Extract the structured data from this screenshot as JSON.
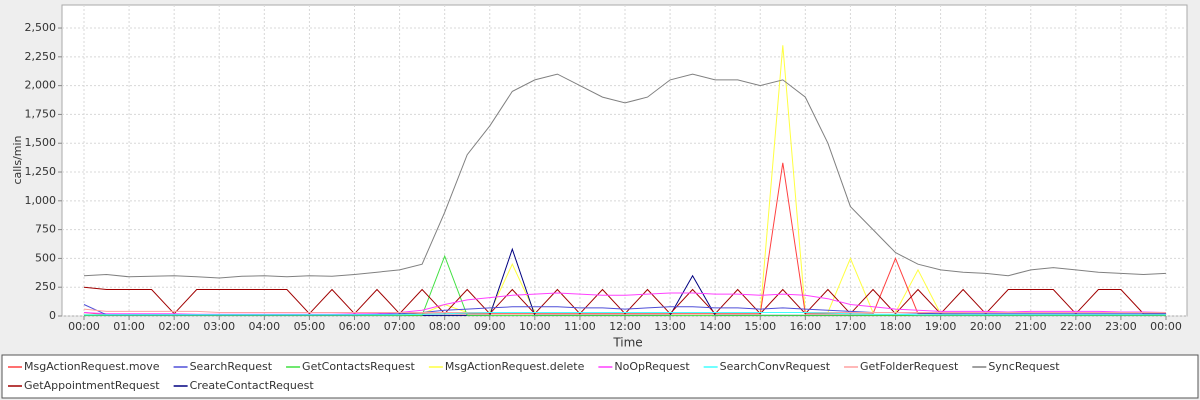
{
  "chart_data": {
    "type": "line",
    "x_label": "Time",
    "y_label": "calls/min",
    "categories": [
      "00:00",
      null,
      "01:00",
      null,
      "02:00",
      null,
      "03:00",
      null,
      "04:00",
      null,
      "05:00",
      null,
      "06:00",
      null,
      "07:00",
      null,
      "08:00",
      null,
      "09:00",
      null,
      "10:00",
      null,
      "11:00",
      null,
      "12:00",
      null,
      "13:00",
      null,
      "14:00",
      null,
      "15:00",
      null,
      "16:00",
      null,
      "17:00",
      null,
      "18:00",
      null,
      "19:00",
      null,
      "20:00",
      null,
      "21:00",
      null,
      "22:00",
      null,
      "23:00",
      null,
      "00:00"
    ],
    "ylim": [
      0,
      2700
    ],
    "yticks": [
      0,
      250,
      500,
      750,
      {
        "value": 1000,
        "label": "1,000"
      },
      {
        "value": 1250,
        "label": "1,250"
      },
      {
        "value": 1500,
        "label": "1,500"
      },
      {
        "value": 1750,
        "label": "1,750"
      },
      {
        "value": 2000,
        "label": "2,000"
      },
      {
        "value": 2250,
        "label": "2,250"
      },
      {
        "value": 2500,
        "label": "2,500"
      }
    ],
    "grid": true,
    "legend": "bottom",
    "series": [
      {
        "name": "MsgActionRequest.move",
        "color": "#ff4040",
        "values": [
          30,
          10,
          10,
          10,
          10,
          10,
          10,
          10,
          10,
          10,
          10,
          10,
          10,
          10,
          10,
          20,
          20,
          20,
          20,
          20,
          20,
          20,
          20,
          20,
          20,
          20,
          20,
          20,
          20,
          20,
          20,
          1330,
          20,
          20,
          20,
          20,
          500,
          20,
          20,
          10,
          10,
          10,
          10,
          10,
          10,
          10,
          10,
          10,
          10
        ]
      },
      {
        "name": "SearchRequest",
        "color": "#4f4fd8",
        "values": [
          100,
          10,
          10,
          10,
          10,
          10,
          10,
          10,
          10,
          10,
          10,
          10,
          10,
          15,
          20,
          30,
          50,
          60,
          70,
          80,
          80,
          80,
          70,
          70,
          60,
          70,
          80,
          80,
          70,
          70,
          60,
          70,
          60,
          50,
          40,
          30,
          30,
          25,
          20,
          20,
          20,
          20,
          20,
          20,
          20,
          20,
          20,
          20,
          20
        ]
      },
      {
        "name": "GetContactsRequest",
        "color": "#40e040",
        "values": [
          5,
          5,
          5,
          5,
          5,
          5,
          5,
          5,
          5,
          5,
          5,
          5,
          5,
          5,
          5,
          5,
          520,
          5,
          5,
          5,
          5,
          5,
          5,
          5,
          5,
          5,
          5,
          5,
          5,
          5,
          5,
          5,
          5,
          5,
          5,
          5,
          5,
          5,
          5,
          5,
          5,
          5,
          5,
          5,
          5,
          5,
          5,
          5,
          5
        ]
      },
      {
        "name": "MsgActionRequest.delete",
        "color": "#ffff40",
        "values": [
          10,
          10,
          10,
          10,
          10,
          10,
          10,
          10,
          10,
          10,
          10,
          10,
          10,
          10,
          10,
          20,
          100,
          30,
          30,
          450,
          30,
          30,
          30,
          30,
          30,
          30,
          30,
          30,
          30,
          30,
          30,
          2350,
          30,
          30,
          500,
          30,
          30,
          400,
          20,
          20,
          10,
          10,
          10,
          10,
          10,
          10,
          10,
          10,
          10
        ]
      },
      {
        "name": "NoOpRequest",
        "color": "#ff40ff",
        "values": [
          30,
          20,
          20,
          20,
          20,
          15,
          15,
          15,
          15,
          15,
          15,
          15,
          20,
          20,
          30,
          50,
          100,
          140,
          160,
          180,
          190,
          200,
          190,
          180,
          180,
          190,
          200,
          200,
          190,
          190,
          180,
          190,
          180,
          150,
          100,
          80,
          60,
          50,
          40,
          40,
          40,
          35,
          40,
          40,
          40,
          40,
          35,
          35,
          30
        ]
      },
      {
        "name": "SearchConvRequest",
        "color": "#40ffff",
        "values": [
          10,
          10,
          10,
          10,
          10,
          10,
          10,
          10,
          10,
          10,
          10,
          10,
          10,
          10,
          10,
          15,
          20,
          25,
          30,
          30,
          30,
          30,
          30,
          30,
          30,
          30,
          30,
          30,
          30,
          30,
          30,
          30,
          30,
          25,
          20,
          15,
          15,
          10,
          10,
          10,
          10,
          10,
          10,
          10,
          10,
          10,
          10,
          10,
          10
        ]
      },
      {
        "name": "GetFolderRequest",
        "color": "#ffa0a0",
        "values": [
          60,
          40,
          40,
          40,
          40,
          40,
          30,
          30,
          30,
          30,
          30,
          30,
          30,
          30,
          30,
          30,
          30,
          30,
          30,
          30,
          30,
          30,
          30,
          30,
          30,
          30,
          30,
          30,
          30,
          30,
          30,
          30,
          30,
          30,
          30,
          30,
          30,
          30,
          30,
          30,
          30,
          30,
          30,
          30,
          30,
          30,
          30,
          30,
          30
        ]
      },
      {
        "name": "SyncRequest",
        "color": "#808080",
        "values": [
          350,
          360,
          340,
          345,
          350,
          340,
          330,
          345,
          350,
          340,
          350,
          345,
          360,
          380,
          400,
          450,
          900,
          1400,
          1650,
          1950,
          2050,
          2100,
          2000,
          1900,
          1850,
          1900,
          2050,
          2100,
          2050,
          2050,
          2000,
          2050,
          1900,
          1500,
          950,
          750,
          550,
          450,
          400,
          380,
          370,
          350,
          400,
          420,
          400,
          380,
          370,
          360,
          370
        ]
      },
      {
        "name": "GetAppointmentRequest",
        "color": "#a00000",
        "values": [
          250,
          230,
          230,
          230,
          20,
          230,
          230,
          230,
          230,
          230,
          20,
          230,
          20,
          230,
          20,
          230,
          20,
          230,
          20,
          230,
          20,
          230,
          20,
          230,
          20,
          230,
          20,
          230,
          20,
          230,
          20,
          230,
          20,
          230,
          20,
          230,
          20,
          230,
          20,
          230,
          20,
          230,
          230,
          230,
          20,
          230,
          230,
          20,
          20
        ]
      },
      {
        "name": "CreateContactRequest",
        "color": "#000080",
        "values": [
          5,
          5,
          5,
          5,
          5,
          5,
          5,
          5,
          5,
          5,
          5,
          5,
          5,
          5,
          5,
          5,
          5,
          5,
          5,
          580,
          5,
          5,
          5,
          5,
          5,
          5,
          5,
          350,
          5,
          5,
          5,
          5,
          5,
          5,
          5,
          5,
          5,
          5,
          5,
          5,
          5,
          5,
          5,
          5,
          5,
          5,
          5,
          5,
          5
        ]
      }
    ]
  }
}
